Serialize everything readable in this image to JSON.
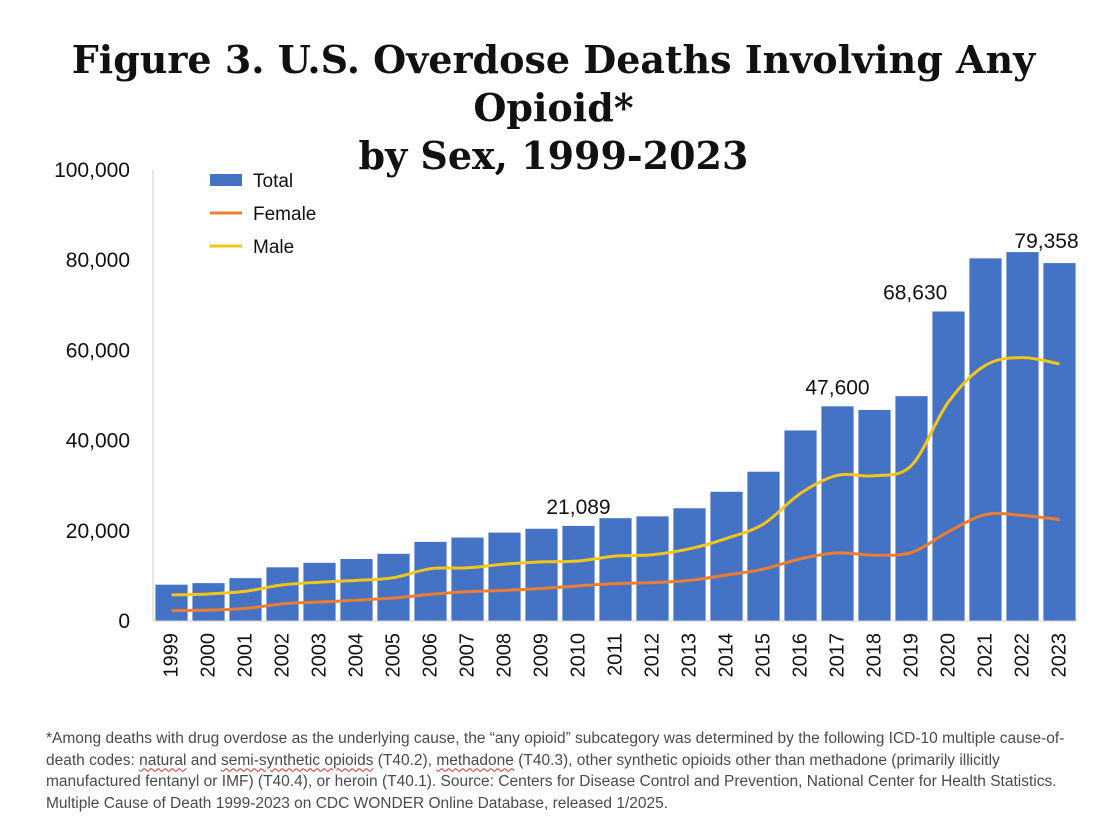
{
  "title": {
    "line1": "Figure 3. U.S. Overdose Deaths Involving Any Opioid*",
    "line2": "by Sex, 1999-2023"
  },
  "chart_data": {
    "type": "bar",
    "title": "Figure 3. U.S. Overdose Deaths Involving Any Opioid* by Sex, 1999-2023",
    "categories": [
      "1999",
      "2000",
      "2001",
      "2002",
      "2003",
      "2004",
      "2005",
      "2006",
      "2007",
      "2008",
      "2009",
      "2010",
      "2011",
      "2012",
      "2013",
      "2014",
      "2015",
      "2016",
      "2017",
      "2018",
      "2019",
      "2020",
      "2021",
      "2022",
      "2023"
    ],
    "series": [
      {
        "name": "Total",
        "type": "bar",
        "color": "#4472C4",
        "values": [
          8050,
          8400,
          9500,
          11900,
          12900,
          13750,
          14900,
          17550,
          18500,
          19600,
          20450,
          21089,
          22800,
          23200,
          25000,
          28650,
          33100,
          42250,
          47600,
          46800,
          49850,
          68630,
          80400,
          81800,
          79358
        ]
      },
      {
        "name": "Female",
        "type": "line",
        "color": "#ED7D31",
        "values": [
          2300,
          2400,
          2800,
          3800,
          4200,
          4600,
          5100,
          5900,
          6500,
          6800,
          7200,
          7800,
          8300,
          8500,
          9000,
          10200,
          11500,
          13800,
          15100,
          14600,
          15200,
          19800,
          23600,
          23400,
          22500
        ]
      },
      {
        "name": "Male",
        "type": "line",
        "color": "#F5C518",
        "values": [
          5800,
          6000,
          6600,
          8000,
          8600,
          9000,
          9600,
          11600,
          11800,
          12600,
          13100,
          13300,
          14400,
          14700,
          16000,
          18300,
          21500,
          28300,
          32300,
          32200,
          34500,
          48600,
          56700,
          58400,
          57000
        ]
      }
    ],
    "data_labels": [
      {
        "category": "2010",
        "text": "21,089"
      },
      {
        "category": "2017",
        "text": "47,600"
      },
      {
        "category": "2020",
        "text": "68,630"
      },
      {
        "category": "2023",
        "text": "79,358"
      }
    ],
    "y_ticks": [
      "0",
      "20,000",
      "40,000",
      "60,000",
      "80,000",
      "100,000"
    ],
    "ylim": [
      0,
      100000
    ],
    "grid": false,
    "legend": {
      "position": "top-left",
      "entries": [
        "Total",
        "Female",
        "Male"
      ]
    },
    "xlabel": "",
    "ylabel": ""
  },
  "footnote": {
    "p1": "*Among deaths with drug overdose as the underlying cause, the “any opioid” subcategory was determined by the following ICD-10 multiple cause-of-death codes: ",
    "s1": "natural",
    "p2": " and ",
    "s2": "semi-synthetic opioids",
    "p3": " (T40.2), ",
    "s3": "methadone",
    "p4": " (T40.3), other synthetic opioids other than methadone (primarily illicitly manufactured fentanyl or IMF) (T40.4), or heroin (T40.1). Source: Centers for Disease Control and Prevention, National Center for Health Statistics. Multiple Cause of Death 1999-2023 on CDC WONDER Online Database, released 1/2025."
  }
}
